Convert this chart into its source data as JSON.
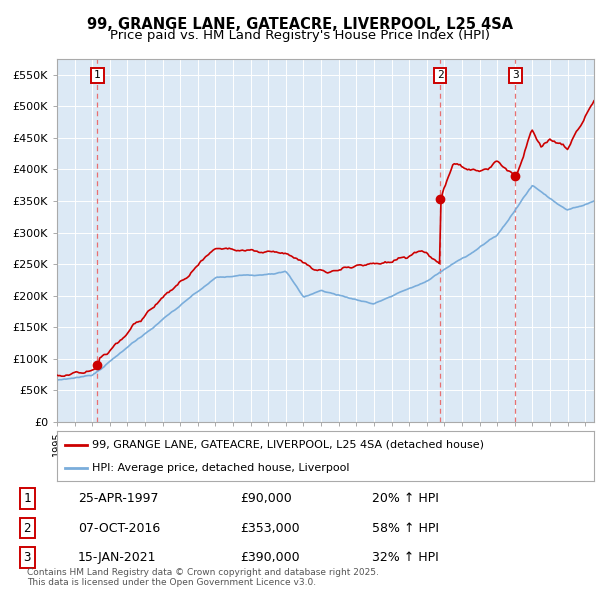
{
  "title": "99, GRANGE LANE, GATEACRE, LIVERPOOL, L25 4SA",
  "subtitle": "Price paid vs. HM Land Registry's House Price Index (HPI)",
  "title_fontsize": 10.5,
  "subtitle_fontsize": 9.5,
  "ylim": [
    0,
    575000
  ],
  "yticks": [
    0,
    50000,
    100000,
    150000,
    200000,
    250000,
    300000,
    350000,
    400000,
    450000,
    500000,
    550000
  ],
  "ytick_labels": [
    "£0",
    "£50K",
    "£100K",
    "£150K",
    "£200K",
    "£250K",
    "£300K",
    "£350K",
    "£400K",
    "£450K",
    "£500K",
    "£550K"
  ],
  "plot_bg_color": "#dce9f5",
  "red_line_color": "#cc0000",
  "blue_line_color": "#7aaddb",
  "grid_color": "#ffffff",
  "dashed_line_color": "#e87070",
  "sale1_x": 1997.3,
  "sale1_y": 90000,
  "sale2_x": 2016.77,
  "sale2_y": 353000,
  "sale3_x": 2021.04,
  "sale3_y": 390000,
  "legend_label_red": "99, GRANGE LANE, GATEACRE, LIVERPOOL, L25 4SA (detached house)",
  "legend_label_blue": "HPI: Average price, detached house, Liverpool",
  "table_rows": [
    [
      "1",
      "25-APR-1997",
      "£90,000",
      "20% ↑ HPI"
    ],
    [
      "2",
      "07-OCT-2016",
      "£353,000",
      "58% ↑ HPI"
    ],
    [
      "3",
      "15-JAN-2021",
      "£390,000",
      "32% ↑ HPI"
    ]
  ],
  "footer": "Contains HM Land Registry data © Crown copyright and database right 2025.\nThis data is licensed under the Open Government Licence v3.0.",
  "xmin": 1995.0,
  "xmax": 2025.5
}
